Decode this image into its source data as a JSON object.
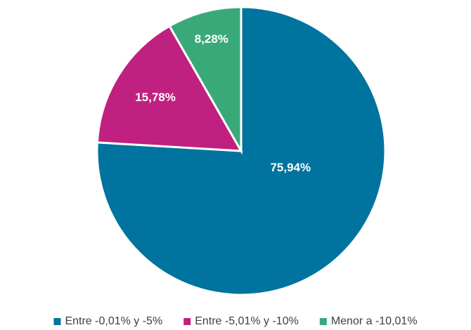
{
  "chart_data": {
    "type": "pie",
    "categories": [
      "Entre -0,01% y -5%",
      "Entre -5,01% y -10%",
      "Menor a -10,01%"
    ],
    "values": [
      75.94,
      15.78,
      8.28
    ],
    "value_labels": [
      "75,94%",
      "15,78%",
      "8,28%"
    ],
    "colors": [
      "#00739e",
      "#c0207f",
      "#3aa97a"
    ],
    "legend": "bottom"
  }
}
